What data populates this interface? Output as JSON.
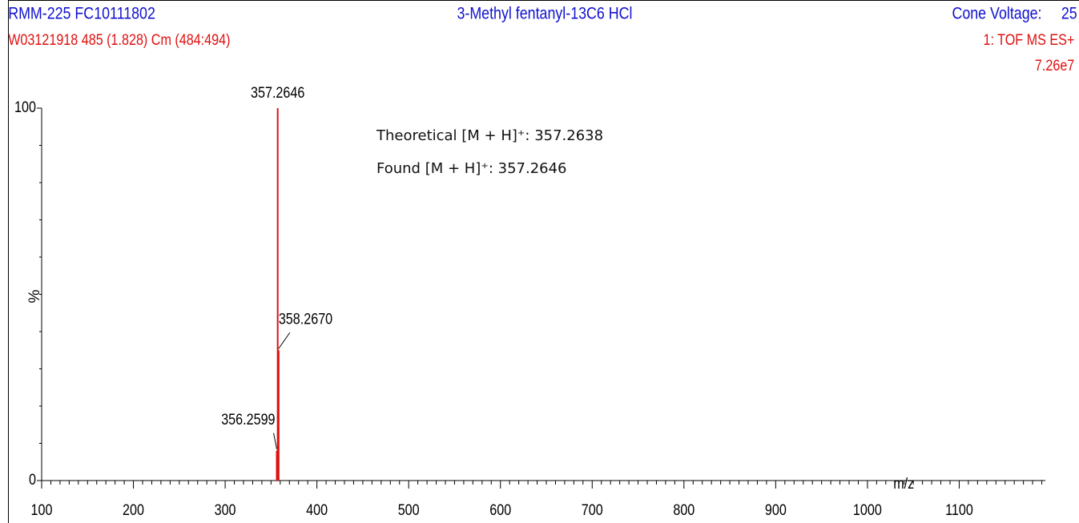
{
  "chart_data": {
    "type": "spectrum",
    "header_left": "RMM-225 FC10111802",
    "title": "3-Methyl fentanyl-13C6 HCl",
    "header_right_label": "Cone Voltage:",
    "header_right_value": "25",
    "subheader_left": "W03121918 485 (1.828) Cm (484:494)",
    "subheader_right": "1: TOF MS ES+",
    "intensity": "7.26e7",
    "ylabel": "%",
    "xlabel": "m/z",
    "annotations": [
      "Theoretical [M + H]⁺: 357.2638",
      "Found [M + H]⁺: 357.2646"
    ],
    "x": [
      356.2599,
      357.2646,
      358.267
    ],
    "labels": [
      "356.2599",
      "357.2646",
      "358.2670"
    ],
    "values": [
      8,
      100,
      35
    ],
    "color": "#e01010",
    "xlim": [
      100,
      1200
    ],
    "xticks": [
      100,
      200,
      300,
      400,
      500,
      600,
      700,
      800,
      900,
      1000,
      1100
    ],
    "ylim": [
      0,
      100
    ],
    "yticks": [
      0,
      100
    ]
  }
}
